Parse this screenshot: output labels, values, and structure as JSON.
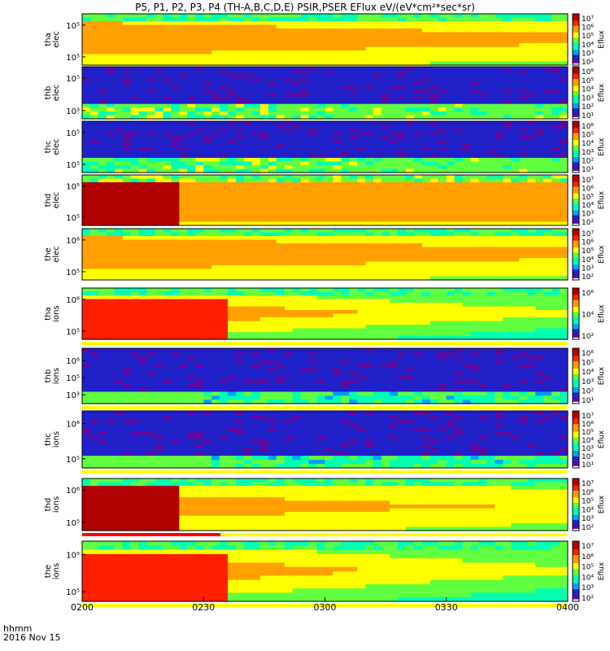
{
  "title": "P5, P1, P2, P3, P4 (TH-A,B,C,D,E) PSIR,PSER EFlux eV/(eV*cm²*sec*sr)",
  "chart_data": {
    "type": "heatmap",
    "date": "2016 Nov 15",
    "x_unit": "hhmm",
    "x_ticks": [
      "0200",
      "0230",
      "0300",
      "0330",
      "0400"
    ],
    "xlim": [
      "0200",
      "0400"
    ],
    "colorbar_label": "Eflux",
    "log_scale": true,
    "panels": [
      {
        "name_line1": "tha",
        "name_line2": "elec",
        "yticks": [
          "10⁵",
          "10⁵"
        ],
        "cbar_ticks": [
          "10⁷",
          "10⁶",
          "10⁵",
          "10⁴",
          "10³",
          "10²"
        ],
        "profile": "elec-strong"
      },
      {
        "name_line1": "thb",
        "name_line2": "elec",
        "yticks": [
          "10⁵",
          "10³"
        ],
        "cbar_ticks": [
          "10⁶",
          "10⁵",
          "10⁴",
          "10³",
          "10²",
          "10¹"
        ],
        "profile": "elec-weak"
      },
      {
        "name_line1": "thc",
        "name_line2": "elec",
        "yticks": [
          "10⁵",
          "10⁵"
        ],
        "cbar_ticks": [
          "10⁶",
          "10⁵",
          "10⁴",
          "10³",
          "10²",
          "10¹"
        ],
        "profile": "elec-weak"
      },
      {
        "name_line1": "thd",
        "name_line2": "elec",
        "yticks": [
          "10⁵",
          "10⁵"
        ],
        "cbar_ticks": [
          "10⁷",
          "10⁶",
          "10⁵",
          "10⁴",
          "10³",
          "10²"
        ],
        "profile": "elec-hot"
      },
      {
        "name_line1": "the",
        "name_line2": "elec",
        "yticks": [
          "10⁶",
          "10⁵"
        ],
        "cbar_ticks": [
          "10⁷",
          "10⁶",
          "10⁵",
          "10⁴",
          "10³",
          "10²"
        ],
        "profile": "elec-strong"
      },
      {
        "name_line1": "tha",
        "name_line2": "ions",
        "yticks": [
          "10⁶",
          "10⁵"
        ],
        "cbar_ticks": [
          "10⁶",
          "10⁴",
          "10²"
        ],
        "profile": "ion-strong"
      },
      {
        "name_line1": "thb",
        "name_line2": "ions",
        "yticks": [
          "10⁶",
          "10⁵",
          "10³"
        ],
        "cbar_ticks": [
          "10⁶",
          "10⁵",
          "10⁴",
          "10³",
          "10²",
          "10¹"
        ],
        "profile": "ion-weak"
      },
      {
        "name_line1": "thc",
        "name_line2": "ions",
        "yticks": [
          "10⁶",
          "10⁵"
        ],
        "cbar_ticks": [
          "10⁷",
          "10⁶",
          "10⁵",
          "10⁴",
          "10³",
          "10²",
          "10¹"
        ],
        "profile": "ion-weak"
      },
      {
        "name_line1": "thd",
        "name_line2": "ions",
        "yticks": [
          "10⁶",
          "10⁵"
        ],
        "cbar_ticks": [
          "10⁷",
          "10⁶",
          "10⁵",
          "10⁴",
          "10³",
          "10²"
        ],
        "profile": "ion-hot"
      },
      {
        "name_line1": "the",
        "name_line2": "ions",
        "yticks": [
          "10⁵",
          "10⁵"
        ],
        "cbar_ticks": [
          "10⁷",
          "10⁶",
          "10⁵",
          "10⁴",
          "10³",
          "10²"
        ],
        "profile": "ion-strong"
      }
    ],
    "colors": {
      "colormap": [
        "#ffffff",
        "#5a0aa0",
        "#2020c8",
        "#00a0ff",
        "#00ffb0",
        "#60ff40",
        "#ffff00",
        "#ffa000",
        "#ff2000",
        "#b00000"
      ],
      "quality_flag_good": "#ffff00",
      "quality_flag_bad": "#ff0000"
    }
  }
}
